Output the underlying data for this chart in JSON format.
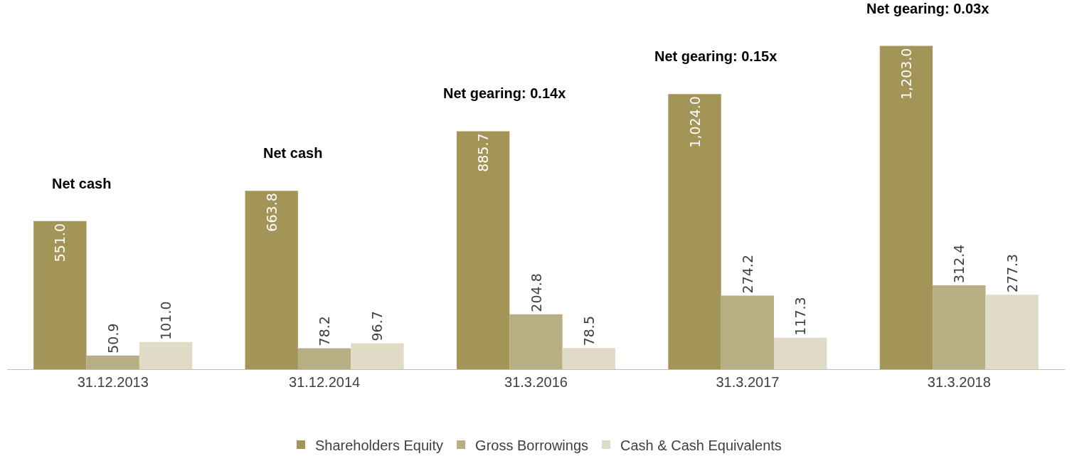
{
  "chart_data": {
    "type": "bar",
    "categories": [
      "31.12.2013",
      "31.12.2014",
      "31.3.2016",
      "31.3.2017",
      "31.3.2018"
    ],
    "series": [
      {
        "name": "Shareholders Equity",
        "color": "#a39458",
        "values": [
          551.0,
          663.8,
          885.7,
          1024.0,
          1203.0
        ],
        "value_labels": [
          "551.0",
          "663.8",
          "885.7",
          "1,024.0",
          "1,203.0"
        ]
      },
      {
        "name": "Gross Borrowings",
        "color": "#b8ae84",
        "values": [
          50.9,
          78.2,
          204.8,
          274.2,
          312.4
        ],
        "value_labels": [
          "50.9",
          "78.2",
          "204.8",
          "274.2",
          "312.4"
        ]
      },
      {
        "name": "Cash & Cash Equivalents",
        "color": "#e0dbc6",
        "values": [
          101.0,
          96.7,
          78.5,
          117.3,
          277.3
        ],
        "value_labels": [
          "101.0",
          "96.7",
          "78.5",
          "117.3",
          "277.3"
        ]
      }
    ],
    "annotations": [
      "Net cash",
      "Net cash",
      "Net gearing: 0.14x",
      "Net gearing: 0.15x",
      "Net gearing: 0.03x"
    ],
    "legend": "bottom"
  }
}
